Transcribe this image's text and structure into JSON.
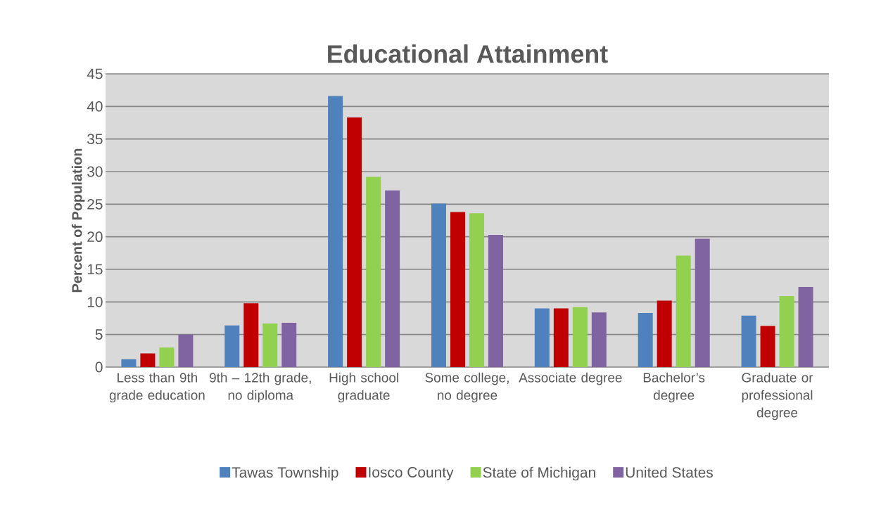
{
  "chart_data": {
    "type": "bar",
    "title": "Educational Attainment",
    "ylabel": "Percent of Population",
    "categories": [
      "Less than 9th grade education",
      "9th – 12th grade, no diploma",
      "High school graduate",
      "Some college, no degree",
      "Associate degree",
      "Bachelor’s degree",
      "Graduate or professional degree"
    ],
    "series": [
      {
        "name": "Tawas Township",
        "color": "#4f81bd",
        "values": [
          1.2,
          6.4,
          41.6,
          25.1,
          9.0,
          8.3,
          7.9
        ]
      },
      {
        "name": "Iosco County",
        "color": "#c00000",
        "values": [
          2.1,
          9.8,
          38.3,
          23.8,
          9.0,
          10.2,
          6.3
        ]
      },
      {
        "name": "State of Michigan",
        "color": "#92d050",
        "values": [
          3.0,
          6.7,
          29.2,
          23.6,
          9.2,
          17.1,
          10.9
        ]
      },
      {
        "name": "United States",
        "color": "#8064a2",
        "values": [
          5.0,
          6.8,
          27.1,
          20.3,
          8.4,
          19.7,
          12.3
        ]
      }
    ],
    "ylim": [
      0,
      45
    ],
    "yticks": [
      0,
      5,
      10,
      15,
      20,
      25,
      30,
      35,
      40,
      45
    ],
    "grid": "y",
    "legend": "bottom"
  }
}
